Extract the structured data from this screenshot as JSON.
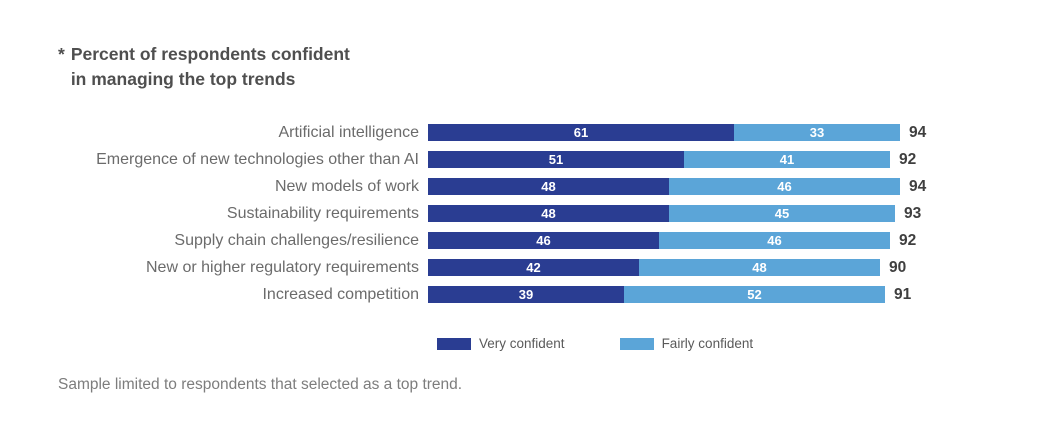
{
  "title": {
    "marker": "*",
    "line1": "Percent of respondents confident",
    "line2": "in managing the top trends"
  },
  "footnote": "Sample limited to respondents that selected as a top trend.",
  "colors": {
    "very_confident": "#2a3d92",
    "fairly_confident": "#5ba5d8"
  },
  "chart_data": {
    "type": "bar",
    "orientation": "horizontal",
    "stacked": true,
    "title": "* Percent of respondents confident in managing the top trends",
    "xlabel": "",
    "ylabel": "",
    "xlim": [
      0,
      100
    ],
    "grid": false,
    "legend_position": "bottom",
    "categories": [
      "Artificial intelligence",
      "Emergence of new technologies other than AI",
      "New models of work",
      "Sustainability requirements",
      "Supply chain challenges/resilience",
      "New or higher regulatory requirements",
      "Increased competition"
    ],
    "series": [
      {
        "name": "Very confident",
        "color": "#2a3d92",
        "values": [
          61,
          51,
          48,
          48,
          46,
          42,
          39
        ]
      },
      {
        "name": "Fairly confident",
        "color": "#5ba5d8",
        "values": [
          33,
          41,
          46,
          45,
          46,
          48,
          52
        ]
      }
    ],
    "totals": [
      94,
      92,
      94,
      93,
      92,
      90,
      91
    ]
  }
}
